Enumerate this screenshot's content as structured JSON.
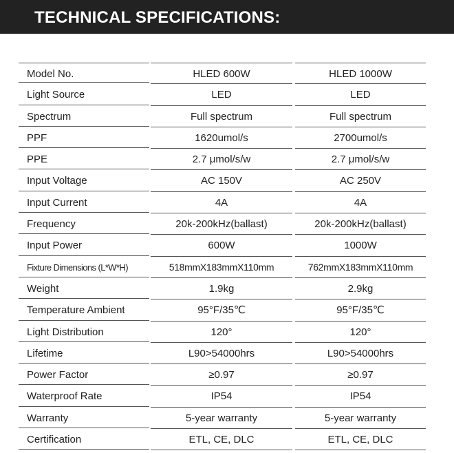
{
  "header": {
    "title": "TECHNICAL SPECIFICATIONS:"
  },
  "table": {
    "rows": [
      [
        "Model No.",
        "HLED 600W",
        "HLED 1000W"
      ],
      [
        "Light Source",
        "LED",
        "LED"
      ],
      [
        "Spectrum",
        "Full spectrum",
        "Full spectrum"
      ],
      [
        "PPF",
        "1620umol/s",
        "2700umol/s"
      ],
      [
        "PPE",
        "2.7 μmol/s/w",
        "2.7 μmol/s/w"
      ],
      [
        "Input Voltage",
        "AC 150V",
        "AC 250V"
      ],
      [
        "Input Current",
        "4A",
        "4A"
      ],
      [
        "Frequency",
        "20k-200kHz(ballast)",
        "20k-200kHz(ballast)"
      ],
      [
        "Input Power",
        "600W",
        "1000W"
      ],
      [
        "Fixture Dimensions (L*W*H)",
        "518mmX183mmX110mm",
        "762mmX183mmX110mm"
      ],
      [
        "Weight",
        "1.9kg",
        "2.9kg"
      ],
      [
        "Temperature Ambient",
        "95°F/35℃",
        "95°F/35℃"
      ],
      [
        "Light Distribution",
        "120°",
        "120°"
      ],
      [
        "Lifetime",
        "L90>54000hrs",
        "L90>54000hrs"
      ],
      [
        "Power Factor",
        "≥0.97",
        "≥0.97"
      ],
      [
        "Waterproof Rate",
        "IP54",
        "IP54"
      ],
      [
        "Warranty",
        "5-year warranty",
        "5-year warranty"
      ],
      [
        "Certification",
        "ETL, CE, DLC",
        "ETL, CE, DLC"
      ]
    ]
  }
}
